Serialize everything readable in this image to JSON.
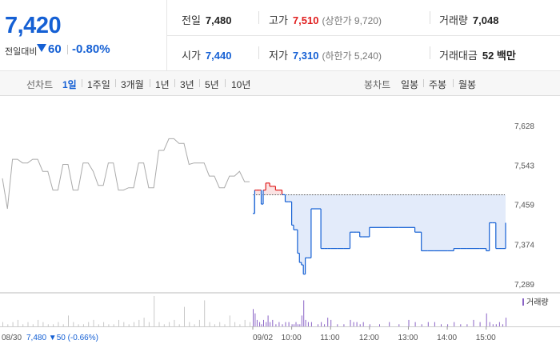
{
  "header": {
    "price": "7,420",
    "change_label": "전일대비",
    "change_value": "60",
    "change_pct": "-0.80%",
    "stats": {
      "prev_close": {
        "label": "전일",
        "value": "7,480"
      },
      "high": {
        "label": "고가",
        "value": "7,510",
        "sub": "(상한가 9,720)"
      },
      "volume": {
        "label": "거래량",
        "value": "7,048"
      },
      "open": {
        "label": "시가",
        "value": "7,440"
      },
      "low": {
        "label": "저가",
        "value": "7,310",
        "sub": "(하한가 5,240)"
      },
      "amount": {
        "label": "거래대금",
        "value": "52 백만"
      }
    }
  },
  "tabs": {
    "line_label": "선차트",
    "line_items": [
      "1일",
      "1주일",
      "3개월",
      "1년",
      "3년",
      "5년",
      "10년"
    ],
    "active": "1일",
    "candle_label": "봉차트",
    "candle_items": [
      "일봉",
      "주봉",
      "월봉"
    ]
  },
  "colors": {
    "up": "#e01e1e",
    "down": "#1560d4",
    "fill": "#e3ebfa",
    "prev": "#aaaaaa"
  },
  "chart_data": {
    "type": "line",
    "y_ticks": [
      "7,628",
      "7,543",
      "7,459",
      "7,374",
      "7,289"
    ],
    "ylim": [
      7289,
      7628
    ],
    "prev_close": 7480,
    "x_ticks": [
      "09/02",
      "10:00",
      "11:00",
      "12:00",
      "13:00",
      "14:00",
      "15:00"
    ],
    "prev_day_label": "08/30",
    "prev_day_summary": "7,480 ▼50 (-0.66%)",
    "legend": "거래량",
    "prev_day_series": [
      7515,
      7450,
      7556,
      7556,
      7548,
      7548,
      7556,
      7556,
      7530,
      7530,
      7490,
      7490,
      7545,
      7545,
      7490,
      7490,
      7548,
      7548,
      7530,
      7500,
      7500,
      7548,
      7548,
      7490,
      7490,
      7495,
      7495,
      7548,
      7548,
      7495,
      7495,
      7575,
      7575,
      7600,
      7600,
      7590,
      7590,
      7545,
      7548,
      7548,
      7548,
      7520,
      7520,
      7495,
      7495,
      7520,
      7520,
      7530,
      7508,
      7508
    ],
    "today_times": [
      "09:00",
      "09:03",
      "09:06",
      "09:10",
      "09:13",
      "09:16",
      "09:20",
      "09:23",
      "09:26",
      "09:30",
      "09:35",
      "09:40",
      "09:45",
      "09:50",
      "09:55",
      "10:00",
      "10:03",
      "10:06",
      "10:09",
      "10:12",
      "10:15",
      "10:18",
      "10:21",
      "10:25",
      "10:30",
      "10:40",
      "10:45",
      "10:50",
      "10:55",
      "11:00",
      "11:10",
      "11:20",
      "11:30",
      "11:35",
      "11:40",
      "11:45",
      "11:50",
      "12:00",
      "12:15",
      "12:30",
      "12:45",
      "13:00",
      "13:10",
      "13:20",
      "13:30",
      "13:40",
      "13:50",
      "14:00",
      "14:10",
      "14:20",
      "14:30",
      "14:40",
      "14:50",
      "15:00",
      "15:05",
      "15:10",
      "15:15",
      "15:20",
      "15:25",
      "15:30"
    ],
    "today_series": [
      7440,
      7490,
      7490,
      7490,
      7460,
      7490,
      7505,
      7505,
      7498,
      7498,
      7490,
      7490,
      7480,
      7465,
      7465,
      7415,
      7405,
      7405,
      7355,
      7335,
      7330,
      7310,
      7345,
      7345,
      7450,
      7450,
      7365,
      7365,
      7365,
      7365,
      7365,
      7365,
      7400,
      7400,
      7400,
      7390,
      7390,
      7410,
      7410,
      7410,
      7410,
      7410,
      7400,
      7360,
      7360,
      7360,
      7360,
      7360,
      7365,
      7365,
      7365,
      7365,
      7365,
      7360,
      7420,
      7420,
      7365,
      7365,
      7365,
      7420
    ],
    "prev_day_volume": [
      2,
      1,
      2,
      3,
      1,
      2,
      1,
      3,
      2,
      1,
      1,
      2,
      1,
      5,
      2,
      1,
      1,
      2,
      3,
      1,
      2,
      1,
      1,
      3,
      2,
      1,
      2,
      3,
      4,
      2,
      14,
      2,
      1,
      2,
      3,
      1,
      9,
      2,
      1,
      3,
      12,
      2,
      1,
      2,
      1,
      5,
      2,
      1,
      3,
      2
    ],
    "today_volume": [
      8,
      6,
      3,
      2,
      1,
      3,
      2,
      5,
      2,
      3,
      1,
      2,
      1,
      2,
      2,
      1,
      1,
      2,
      1,
      1,
      5,
      12,
      3,
      2,
      2,
      1,
      2,
      1,
      4,
      3,
      1,
      1,
      3,
      2,
      2,
      1,
      2,
      1,
      1,
      2,
      1,
      3,
      2,
      1,
      2,
      2,
      1,
      1,
      2,
      1,
      1,
      3,
      2,
      6,
      2,
      1,
      1,
      2,
      1,
      4
    ]
  }
}
